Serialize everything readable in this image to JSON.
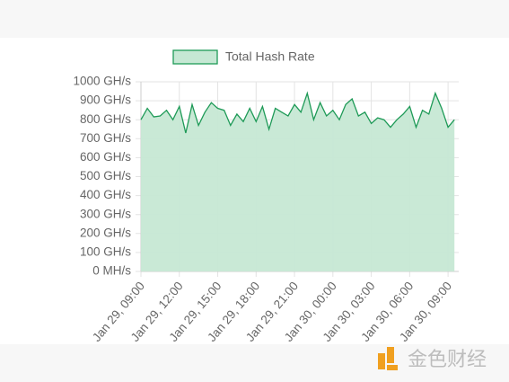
{
  "chart_data": {
    "type": "area",
    "legend_position": "top",
    "series": [
      {
        "name": "Total Hash Rate",
        "color": "#1e9a57",
        "fill": "#c6e8d4",
        "x": [
          "Jan 29, 09:00",
          "Jan 29, 09:30",
          "Jan 29, 10:00",
          "Jan 29, 10:30",
          "Jan 29, 11:00",
          "Jan 29, 11:30",
          "Jan 29, 12:00",
          "Jan 29, 12:30",
          "Jan 29, 13:00",
          "Jan 29, 13:30",
          "Jan 29, 14:00",
          "Jan 29, 14:30",
          "Jan 29, 15:00",
          "Jan 29, 15:30",
          "Jan 29, 16:00",
          "Jan 29, 16:30",
          "Jan 29, 17:00",
          "Jan 29, 17:30",
          "Jan 29, 18:00",
          "Jan 29, 18:30",
          "Jan 29, 19:00",
          "Jan 29, 19:30",
          "Jan 29, 20:00",
          "Jan 29, 20:30",
          "Jan 29, 21:00",
          "Jan 29, 21:30",
          "Jan 29, 22:00",
          "Jan 29, 22:30",
          "Jan 29, 23:00",
          "Jan 29, 23:30",
          "Jan 30, 00:00",
          "Jan 30, 00:30",
          "Jan 30, 01:00",
          "Jan 30, 01:30",
          "Jan 30, 02:00",
          "Jan 30, 02:30",
          "Jan 30, 03:00",
          "Jan 30, 03:30",
          "Jan 30, 04:00",
          "Jan 30, 04:30",
          "Jan 30, 05:00",
          "Jan 30, 05:30",
          "Jan 30, 06:00",
          "Jan 30, 06:30",
          "Jan 30, 07:00",
          "Jan 30, 07:30",
          "Jan 30, 08:00",
          "Jan 30, 08:30",
          "Jan 30, 09:00",
          "Jan 30, 09:30"
        ],
        "values": [
          800,
          860,
          815,
          820,
          850,
          800,
          870,
          730,
          880,
          770,
          840,
          890,
          860,
          850,
          770,
          830,
          790,
          860,
          790,
          870,
          750,
          860,
          840,
          820,
          880,
          840,
          940,
          800,
          890,
          820,
          850,
          800,
          880,
          910,
          820,
          840,
          780,
          810,
          800,
          760,
          800,
          830,
          870,
          760,
          850,
          830,
          940,
          860,
          760,
          800
        ]
      }
    ],
    "xlim": [
      "Jan 29, 09:00",
      "Jan 30, 09:50"
    ],
    "xticks": [
      "Jan 29, 09:00",
      "Jan 29, 12:00",
      "Jan 29, 15:00",
      "Jan 29, 18:00",
      "Jan 29, 21:00",
      "Jan 30, 00:00",
      "Jan 30, 03:00",
      "Jan 30, 06:00",
      "Jan 30, 09:00"
    ],
    "ylim": [
      0,
      1000
    ],
    "yticks": [
      {
        "value": 0,
        "label": "0 MH/s"
      },
      {
        "value": 100,
        "label": "100 GH/s"
      },
      {
        "value": 200,
        "label": "200 GH/s"
      },
      {
        "value": 300,
        "label": "300 GH/s"
      },
      {
        "value": 400,
        "label": "400 GH/s"
      },
      {
        "value": 500,
        "label": "500 GH/s"
      },
      {
        "value": 600,
        "label": "600 GH/s"
      },
      {
        "value": 700,
        "label": "700 GH/s"
      },
      {
        "value": 800,
        "label": "800 GH/s"
      },
      {
        "value": 900,
        "label": "900 GH/s"
      },
      {
        "value": 1000,
        "label": "1000 GH/s"
      }
    ],
    "grid": true
  },
  "watermark": "金色财经"
}
